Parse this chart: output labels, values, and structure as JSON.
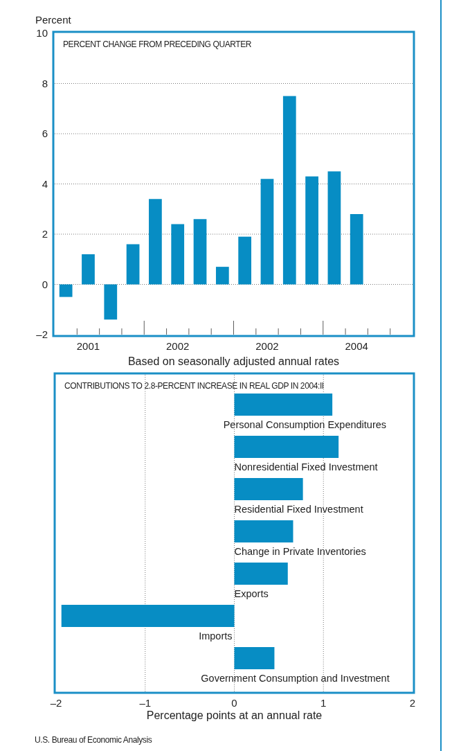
{
  "chart_data": [
    {
      "type": "bar",
      "title": "PERCENT CHANGE FROM PRECEDING QUARTER",
      "ylabel": "Percent",
      "xlabel": "Based on seasonally adjusted annual rates",
      "categories": [
        null,
        "2001",
        null,
        null,
        null,
        "2002",
        null,
        null,
        null,
        "2002",
        null,
        null,
        null,
        "2004",
        null,
        null
      ],
      "values": [
        -0.5,
        1.2,
        -1.4,
        1.6,
        3.4,
        2.4,
        2.6,
        0.7,
        1.9,
        4.2,
        7.5,
        4.3,
        4.5,
        2.8,
        null,
        null
      ],
      "color": "#078dc4",
      "ylim": [
        -2,
        10
      ],
      "yticks": [
        {
          "value": -2,
          "label": "–2"
        },
        0,
        2,
        4,
        6,
        8,
        10
      ],
      "grid": "y"
    },
    {
      "type": "bar",
      "orientation": "horizontal",
      "title": "CONTRIBUTIONS TO 2.8-PERCENT INCREASE IN REAL GDP IN 2004:II",
      "xlabel": "Percentage points at an annual rate",
      "categories": [
        "Personal Consumption Expenditures",
        "Nonresidential Fixed Investment",
        "Residential Fixed Investment",
        "Change in Private Inventories",
        "Exports",
        "Imports",
        "Government Consumption and Investment"
      ],
      "values": [
        1.1,
        1.17,
        0.77,
        0.66,
        0.6,
        -1.94,
        0.45
      ],
      "color": "#078dc4",
      "xlim": [
        -2,
        2
      ],
      "xticks": [
        {
          "value": -2,
          "label": "–2"
        },
        {
          "value": -1,
          "label": "–1"
        },
        0,
        1,
        2
      ],
      "grid": "x",
      "annotations": [
        "U.S. Bureau of Economic Analysis"
      ]
    }
  ]
}
